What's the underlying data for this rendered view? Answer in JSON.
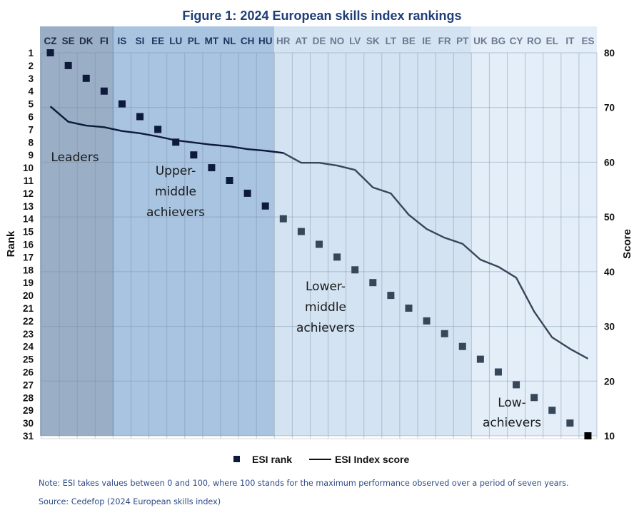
{
  "chart_data": {
    "type": "scatter+line",
    "title": "Figure 1: 2024 European skills index rankings",
    "categories": [
      "CZ",
      "SE",
      "DK",
      "FI",
      "IS",
      "SI",
      "EE",
      "LU",
      "PL",
      "MT",
      "NL",
      "CH",
      "HU",
      "HR",
      "AT",
      "DE",
      "NO",
      "LV",
      "SK",
      "LT",
      "BE",
      "IE",
      "FR",
      "PT",
      "UK",
      "BG",
      "CY",
      "RO",
      "EL",
      "IT",
      "ES"
    ],
    "series": [
      {
        "name": "ESI rank",
        "kind": "marker",
        "axis": "left",
        "values": [
          1,
          2,
          3,
          4,
          5,
          6,
          7,
          8,
          9,
          10,
          11,
          12,
          13,
          14,
          15,
          16,
          17,
          18,
          19,
          20,
          21,
          22,
          23,
          24,
          25,
          26,
          27,
          28,
          29,
          30,
          31
        ]
      },
      {
        "name": "ESI Index score",
        "kind": "line",
        "axis": "right",
        "values": [
          70.2,
          67.4,
          66.7,
          66.4,
          65.7,
          65.3,
          64.7,
          64.0,
          63.6,
          63.2,
          62.9,
          62.4,
          62.1,
          61.7,
          59.9,
          59.9,
          59.4,
          58.6,
          55.4,
          54.3,
          50.4,
          47.8,
          46.2,
          45.1,
          42.2,
          40.9,
          38.9,
          32.7,
          28.0,
          25.9,
          24.1
        ]
      }
    ],
    "left_axis": {
      "label": "Rank",
      "range": [
        1,
        31
      ],
      "inverted": true,
      "ticks": [
        1,
        2,
        3,
        4,
        5,
        6,
        7,
        8,
        9,
        10,
        11,
        12,
        13,
        14,
        15,
        16,
        17,
        18,
        19,
        20,
        21,
        22,
        23,
        24,
        25,
        26,
        27,
        28,
        29,
        30,
        31
      ]
    },
    "right_axis": {
      "label": "Score",
      "range": [
        10,
        80
      ],
      "ticks": [
        80,
        70,
        60,
        50,
        40,
        30,
        20,
        10
      ]
    },
    "groups": [
      {
        "label_lines": [
          "Leaders"
        ],
        "from": "CZ",
        "to": "FI",
        "color": "#9aaec6"
      },
      {
        "label_lines": [
          "Upper-",
          "middle",
          "achievers"
        ],
        "from": "IS",
        "to": "HU",
        "color": "#a9c4e0"
      },
      {
        "label_lines": [
          "Lower-",
          "middle",
          "achievers"
        ],
        "from": "HR",
        "to": "PT",
        "color": "#d4e3f2"
      },
      {
        "label_lines": [
          "Low-",
          "achievers"
        ],
        "from": "UK",
        "to": "ES",
        "color": "#e3eef8"
      }
    ],
    "legend": {
      "position": "bottom",
      "items": [
        "ESI rank",
        "ESI Index score"
      ]
    },
    "grid": true
  },
  "notes": {
    "note": "Note: ESI takes values between 0 and 100, where 100 stands for the maximum performance observed over a period of seven years.",
    "source": "Source: Cedefop (2024 European skills index)"
  },
  "colors": {
    "title": "#1f3e7a",
    "marker_dark": "#0d1a3a",
    "marker_mid": "#37475a",
    "line": "#37475a",
    "note_text": "#2e4a86"
  }
}
